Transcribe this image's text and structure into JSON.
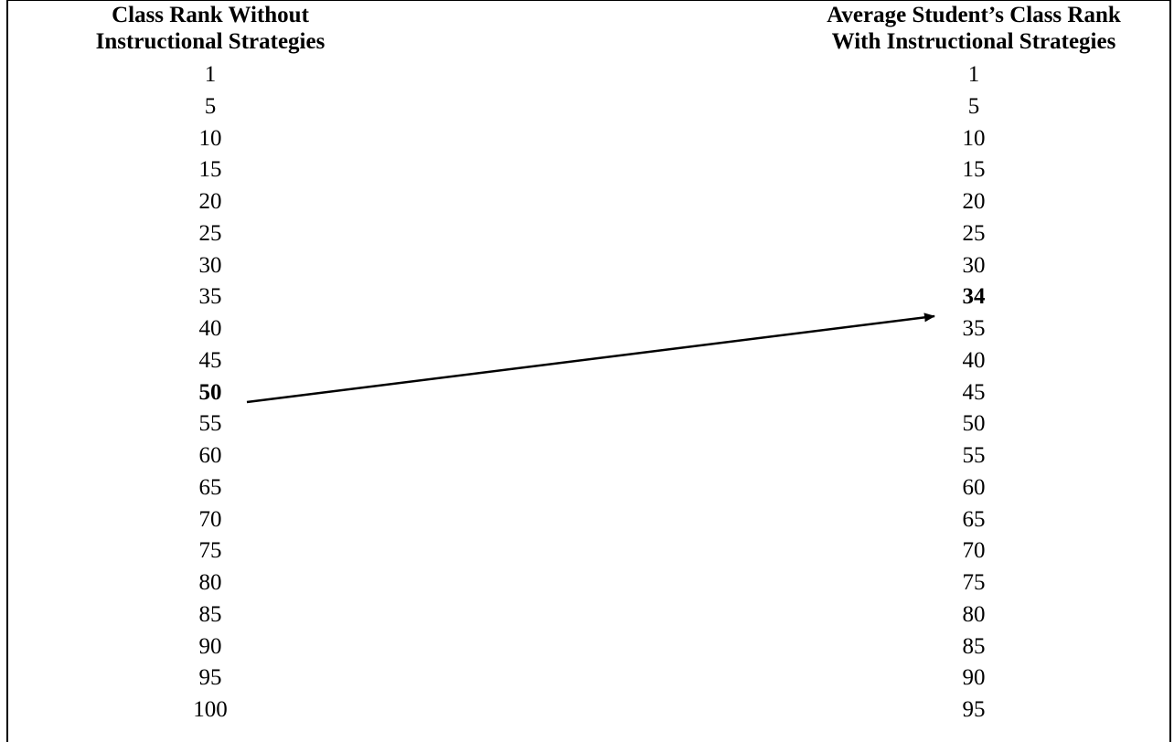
{
  "left_column": {
    "header_line1": "Class Rank Without",
    "header_line2": "Instructional Strategies",
    "ranks": [
      "1",
      "5",
      "10",
      "15",
      "20",
      "25",
      "30",
      "35",
      "40",
      "45",
      "50",
      "55",
      "60",
      "65",
      "70",
      "75",
      "80",
      "85",
      "90",
      "95",
      "100"
    ],
    "highlighted": "50"
  },
  "right_column": {
    "header_line1": "Average Student’s Class Rank",
    "header_line2": "With Instructional Strategies",
    "ranks": [
      "1",
      "5",
      "10",
      "15",
      "20",
      "25",
      "30",
      "34",
      "35",
      "40",
      "45",
      "50",
      "55",
      "60",
      "65",
      "70",
      "75",
      "80",
      "85",
      "90",
      "95"
    ],
    "highlighted": "34"
  },
  "arrow": {
    "from": "50",
    "to": "34",
    "color": "#000000"
  }
}
